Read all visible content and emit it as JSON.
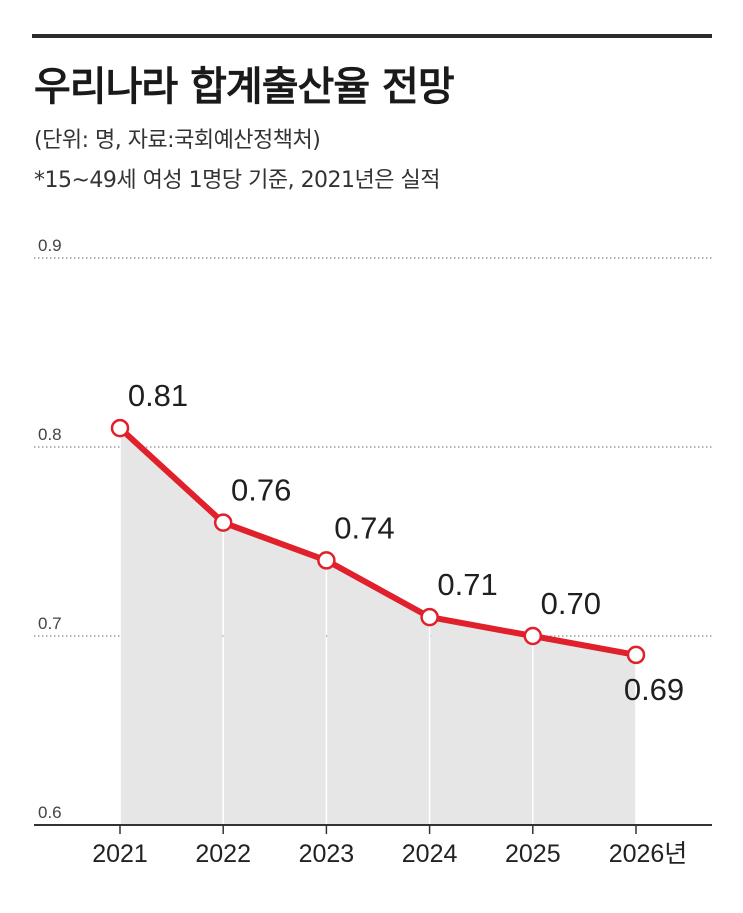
{
  "header": {
    "title": "우리나라 합계출산율 전망",
    "unit_source": "(단위: 명, 자료:국회예산정책처)",
    "note": "*15~49세 여성 1명당 기준, 2021년은 실적"
  },
  "colors": {
    "line": "#e0202a",
    "area": "#e6e6e6",
    "marker_fill": "#ffffff",
    "grid": "#8a8a8a",
    "axis": "#333333"
  },
  "chart_data": {
    "type": "area",
    "title": "우리나라 합계출산율 전망",
    "xlabel": "",
    "ylabel": "",
    "categories": [
      "2021",
      "2022",
      "2023",
      "2024",
      "2025",
      "2026년"
    ],
    "values": [
      0.81,
      0.76,
      0.74,
      0.71,
      0.7,
      0.69
    ],
    "data_labels": [
      "0.81",
      "0.76",
      "0.74",
      "0.71",
      "0.70",
      "0.69"
    ],
    "y_ticks": [
      "0.6",
      "0.7",
      "0.8",
      "0.9"
    ],
    "ylim": [
      0.6,
      0.9
    ],
    "grid": "dotted horizontal",
    "legend": "none"
  }
}
